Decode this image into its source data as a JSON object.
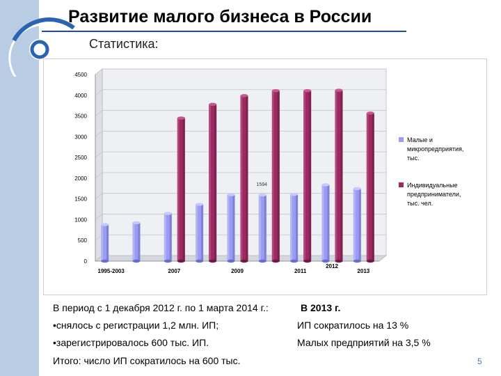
{
  "slide": {
    "title": "Развитие малого бизнеса в России",
    "subtitle": "Статистика:",
    "page_number": "5"
  },
  "colors": {
    "small_business": "#9a9cf0",
    "entrepreneurs": "#9b2a62",
    "accent": "#1f4e8c",
    "left_band": "#b8cde4"
  },
  "chart_data": {
    "type": "bar",
    "categories": [
      "1995-2003",
      "",
      "2007",
      "",
      "2009",
      "",
      "2011",
      "2012",
      "2013"
    ],
    "tick_labels": [
      {
        "text": "1995-2003",
        "index": 0
      },
      {
        "text": "2007",
        "index": 2
      },
      {
        "text": "2009",
        "index": 4
      },
      {
        "text": "2011",
        "index": 6
      },
      {
        "text": "2012",
        "index": 7
      },
      {
        "text": "2013",
        "index": 8
      }
    ],
    "series": [
      {
        "name": "Малые  и микропредприятия, тыс.",
        "legend_lines": [
          "Малые  и",
          "микропредприятия,",
          "тыс."
        ],
        "color": "#9a9cf0",
        "values": [
          880,
          925,
          1150,
          1370,
          1600,
          1594,
          1610,
          1840,
          1750
        ]
      },
      {
        "name": "Индивидуальные предприниматели, тыс. чел.",
        "legend_lines": [
          "Индивидуальные",
          "предприниматели,",
          "тыс. чел."
        ],
        "color": "#9b2a62",
        "values": [
          null,
          null,
          3450,
          3780,
          3990,
          4110,
          4110,
          4120,
          3570
        ]
      }
    ],
    "data_labels": [
      {
        "series": 0,
        "index": 5,
        "text": "1594"
      }
    ],
    "ylim": [
      0,
      4500
    ],
    "yticks": [
      "0",
      "500",
      "1000",
      "1500",
      "2000",
      "2500",
      "3000",
      "3500",
      "4000",
      "4500"
    ],
    "grid": true,
    "legend": "right"
  },
  "notes": {
    "period_text": "В период с 1 декабря 2012 г. по 1 марта 2014 г.:",
    "year_heading": "В 2013 г.",
    "bullet1": "•снялось с регистрации  1,2 млн. ИП;",
    "bullet2": "•зарегистрировалось 600 тыс. ИП.",
    "total": "Итого: число ИП сократилось на 600 тыс.",
    "ip_drop": "ИП сократилось на 13 %",
    "small_drop": "Малых предприятий на 3,5 %"
  }
}
